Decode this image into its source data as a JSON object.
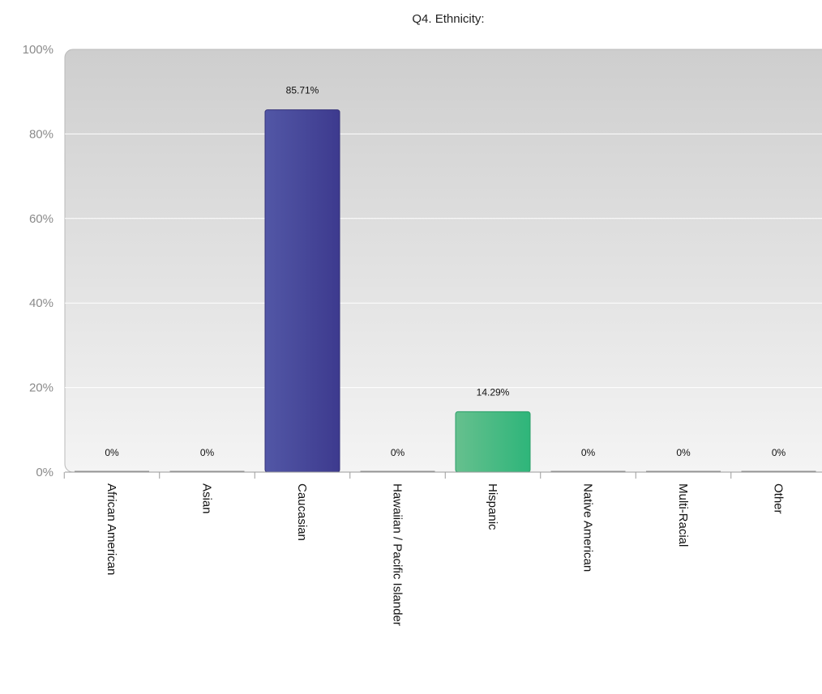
{
  "chart_data": {
    "type": "bar",
    "title": "Q4. Ethnicity:",
    "xlabel": "",
    "ylabel": "",
    "ylim": [
      0,
      100
    ],
    "y_ticks": [
      0,
      20,
      40,
      60,
      80,
      100
    ],
    "y_tick_labels": [
      "0%",
      "20%",
      "40%",
      "60%",
      "80%",
      "100%"
    ],
    "categories": [
      "African American",
      "Asian",
      "Caucasian",
      "Hawaiian / Pacific Islander",
      "Hispanic",
      "Native American",
      "Multi-Racial",
      "Other"
    ],
    "values": [
      0,
      0,
      85.71,
      0,
      14.29,
      0,
      0,
      0
    ],
    "data_labels": [
      "0%",
      "0%",
      "85.71%",
      "0%",
      "14.29%",
      "0%",
      "0%",
      "0%"
    ],
    "grid": true,
    "legend": "none",
    "bar_colors": [
      "#4a4d9e",
      "#4a4d9e",
      "#45479a",
      "#4a4d9e",
      "#3dba82",
      "#4a4d9e",
      "#4a4d9e",
      "#4a4d9e"
    ],
    "background_gradient": [
      "#cecece",
      "#f4f4f4"
    ]
  }
}
